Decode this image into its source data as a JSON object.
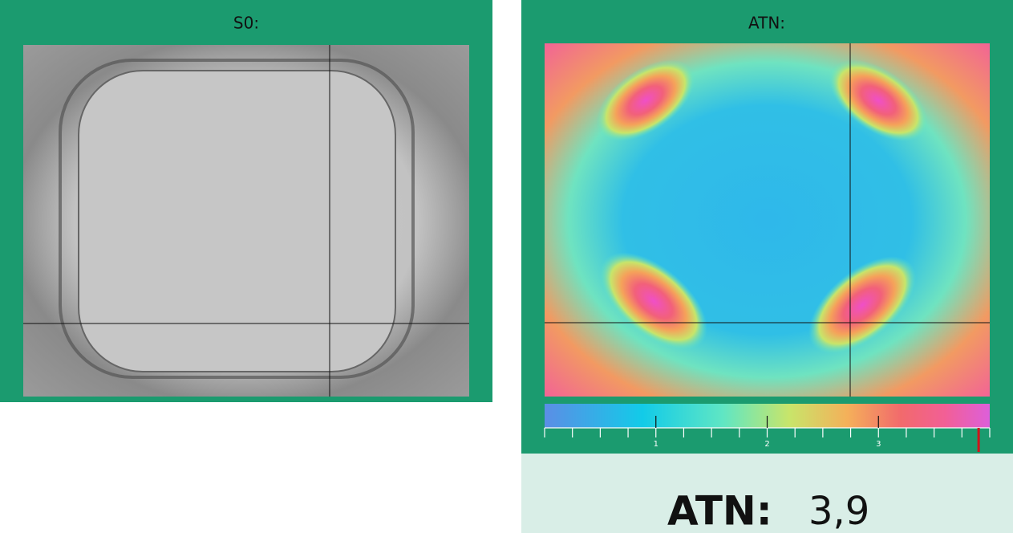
{
  "panels": [
    {
      "title": "S0:"
    },
    {
      "title": "ATN:"
    }
  ],
  "colorbar": {
    "range": [
      0,
      4
    ],
    "ticks": [
      1,
      2,
      3
    ],
    "minor_ticks": [
      0,
      0.25,
      0.5,
      0.75,
      1,
      1.25,
      1.5,
      1.75,
      2,
      2.25,
      2.5,
      2.75,
      3,
      3.25,
      3.5,
      3.75,
      4
    ]
  },
  "readout": {
    "label": "ATN:",
    "value": {
      "value": 3.9,
      "label": "3,9"
    }
  }
}
